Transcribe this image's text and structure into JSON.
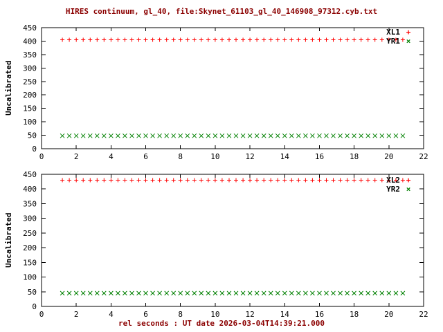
{
  "title": "HIRES continuum, gl_40, file:Skynet_61103_gl_40_146908_97312.cyb.txt",
  "xlabel": "rel seconds : UT date 2026-03-04T14:39:21.000",
  "colors": {
    "title": "#8b0000",
    "xlabel": "#8b0000",
    "axis": "#000000",
    "red": "#ff0000",
    "green": "#008000"
  },
  "chart_data": [
    {
      "type": "scatter",
      "title": "",
      "ylabel": "Uncalibrated",
      "xlim": [
        0,
        22
      ],
      "ylim": [
        0,
        450
      ],
      "xticks": [
        0,
        2,
        4,
        6,
        8,
        10,
        12,
        14,
        16,
        18,
        20,
        22
      ],
      "yticks": [
        0,
        50,
        100,
        150,
        200,
        250,
        300,
        350,
        400,
        450
      ],
      "grid": false,
      "legend_position": "top-right-inside",
      "series": [
        {
          "name": "XL1",
          "marker": "plus",
          "marker_glyph": "+",
          "color": "#ff0000",
          "x_start": 1.2,
          "x_step": 0.4,
          "count": 50,
          "y_value": 405,
          "description": "constant series, y ≈ 405 for x from 1.2 to 20.8"
        },
        {
          "name": "YR1",
          "marker": "cross",
          "marker_glyph": "×",
          "color": "#008000",
          "x_start": 1.2,
          "x_step": 0.4,
          "count": 50,
          "y_value": 48,
          "description": "constant series, y ≈ 48 for x from 1.2 to 20.8"
        }
      ]
    },
    {
      "type": "scatter",
      "title": "",
      "ylabel": "Uncalibrated",
      "xlim": [
        0,
        22
      ],
      "ylim": [
        0,
        450
      ],
      "xticks": [
        0,
        2,
        4,
        6,
        8,
        10,
        12,
        14,
        16,
        18,
        20,
        22
      ],
      "yticks": [
        0,
        50,
        100,
        150,
        200,
        250,
        300,
        350,
        400,
        450
      ],
      "grid": false,
      "legend_position": "top-right-inside",
      "series": [
        {
          "name": "XL2",
          "marker": "plus",
          "marker_glyph": "+",
          "color": "#ff0000",
          "x_start": 1.2,
          "x_step": 0.4,
          "count": 50,
          "y_value": 430,
          "description": "constant series, y ≈ 430 for x from 1.2 to 20.8"
        },
        {
          "name": "YR2",
          "marker": "cross",
          "marker_glyph": "×",
          "color": "#008000",
          "x_start": 1.2,
          "x_step": 0.4,
          "count": 50,
          "y_value": 45,
          "description": "constant series, y ≈ 45 for x from 1.2 to 20.8"
        }
      ]
    }
  ]
}
